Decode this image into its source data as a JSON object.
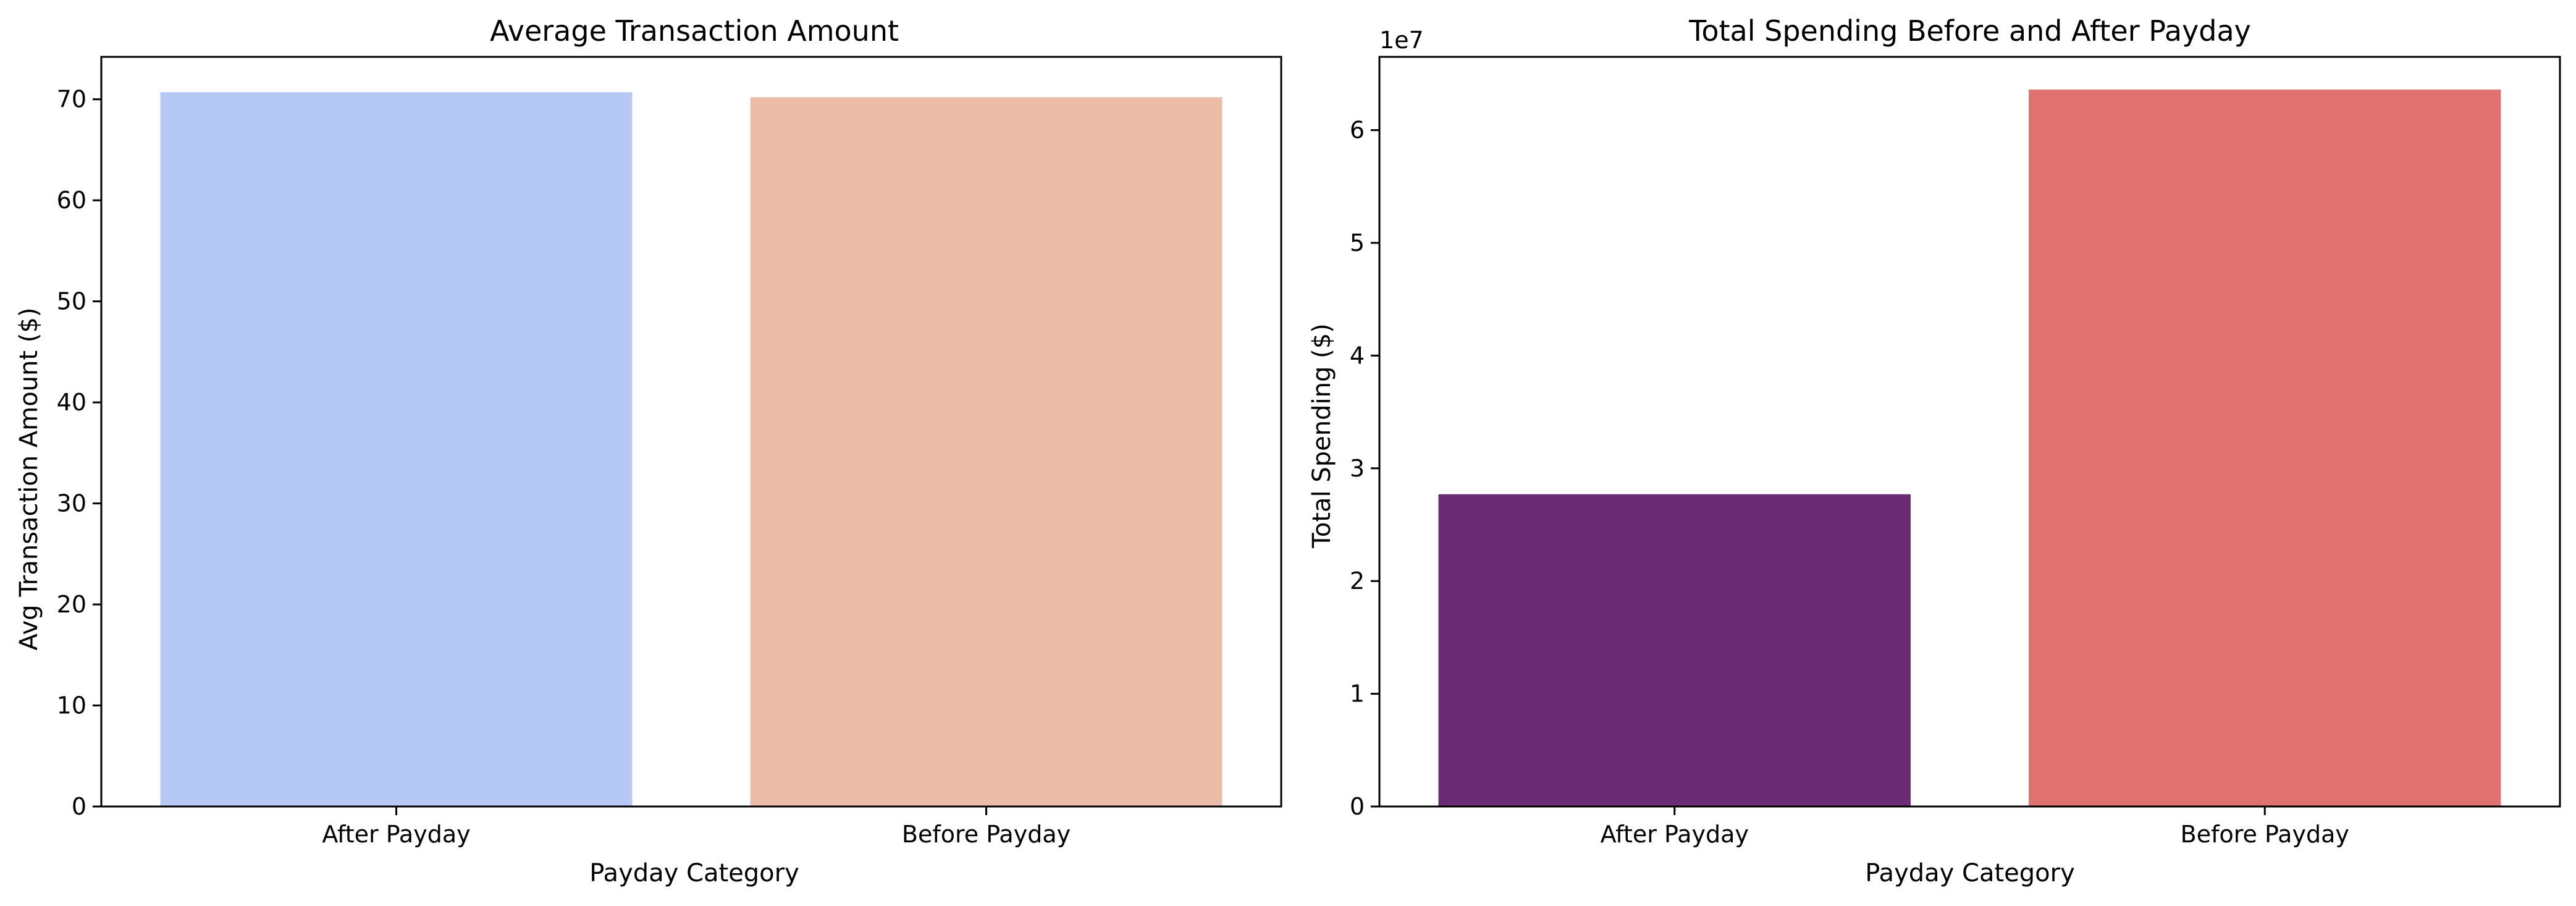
{
  "chart_data": [
    {
      "type": "bar",
      "title": "Average Transaction Amount",
      "xlabel": "Payday Category",
      "ylabel": "Avg Transaction Amount ($)",
      "categories": [
        "After Payday",
        "Before Payday"
      ],
      "values": [
        70.7,
        70.2
      ],
      "colors": [
        "#b5c9f4",
        "#ebbda9"
      ],
      "ylim": [
        0,
        74.2
      ],
      "yticks": [
        0,
        10,
        20,
        30,
        40,
        50,
        60,
        70
      ],
      "ytick_labels": [
        "0",
        "10",
        "20",
        "30",
        "40",
        "50",
        "60",
        "70"
      ],
      "offset_label": "",
      "grid": false,
      "legend": "none"
    },
    {
      "type": "bar",
      "title": "Total Spending Before and After Payday",
      "xlabel": "Payday Category",
      "ylabel": "Total Spending ($)",
      "categories": [
        "After Payday",
        "Before Payday"
      ],
      "values": [
        27700000,
        63600000
      ],
      "colors": [
        "#692b72",
        "#df716f"
      ],
      "ylim": [
        0,
        66500000
      ],
      "yticks": [
        0,
        10000000,
        20000000,
        30000000,
        40000000,
        50000000,
        60000000
      ],
      "ytick_labels": [
        "0",
        "1",
        "2",
        "3",
        "4",
        "5",
        "6"
      ],
      "offset_label": "1e7",
      "grid": false,
      "legend": "none"
    }
  ]
}
